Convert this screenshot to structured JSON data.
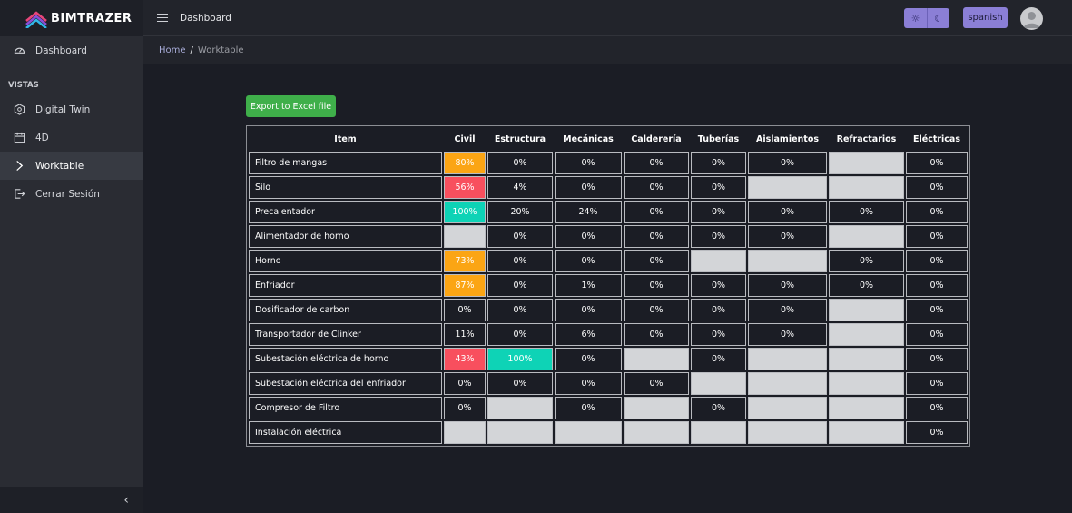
{
  "brand": {
    "name": "BIMTRAZER",
    "logo_icon": "bimtrazer-logo-icon"
  },
  "sidebar": {
    "dashboard": {
      "label": "Dashboard",
      "icon": "gauge-icon"
    },
    "section_title": "VISTAS",
    "items": [
      {
        "label": "Digital Twin",
        "icon": "cube-icon"
      },
      {
        "label": "4D",
        "icon": "calendar-icon"
      },
      {
        "label": "Worktable",
        "icon": "diamond-arrow-icon",
        "active": true
      },
      {
        "label": "Cerrar Sesión",
        "icon": "logout-icon"
      }
    ],
    "collapse_icon": "chevron-left-icon"
  },
  "topbar": {
    "title": "Dashboard",
    "language": "spanish",
    "theme_light_icon": "sun-icon",
    "theme_dark_icon": "moon-icon"
  },
  "breadcrumb": {
    "home": "Home",
    "separator": "/",
    "current": "Worktable"
  },
  "toolbar": {
    "export_label": "Export to Excel file"
  },
  "colors": {
    "orange": "#fba514",
    "red": "#f84f5e",
    "teal": "#0ed3b6",
    "na": "#d3d5d8",
    "accent": "#8b7fd6",
    "export": "#3faf4a"
  },
  "table": {
    "headers": [
      "Item",
      "Civil",
      "Estructura",
      "Mecánicas",
      "Calderería",
      "Tuberías",
      "Aislamientos",
      "Refractarios",
      "Eléctricas"
    ],
    "rows": [
      {
        "item": "Filtro de mangas",
        "cells": [
          "80%",
          "0%",
          "0%",
          "0%",
          "0%",
          "0%",
          null,
          "0%"
        ],
        "status": [
          "orange",
          "",
          "",
          "",
          "",
          "",
          "na",
          ""
        ]
      },
      {
        "item": "Silo",
        "cells": [
          "56%",
          "4%",
          "0%",
          "0%",
          "0%",
          null,
          null,
          "0%"
        ],
        "status": [
          "red",
          "",
          "",
          "",
          "",
          "na",
          "na",
          ""
        ]
      },
      {
        "item": "Precalentador",
        "cells": [
          "100%",
          "20%",
          "24%",
          "0%",
          "0%",
          "0%",
          "0%",
          "0%"
        ],
        "status": [
          "teal",
          "",
          "",
          "",
          "",
          "",
          "",
          ""
        ]
      },
      {
        "item": "Alimentador de horno",
        "cells": [
          null,
          "0%",
          "0%",
          "0%",
          "0%",
          "0%",
          null,
          "0%"
        ],
        "status": [
          "na",
          "",
          "",
          "",
          "",
          "",
          "na",
          ""
        ]
      },
      {
        "item": "Horno",
        "cells": [
          "73%",
          "0%",
          "0%",
          "0%",
          null,
          null,
          "0%",
          "0%"
        ],
        "status": [
          "orange",
          "",
          "",
          "",
          "na",
          "na",
          "",
          ""
        ]
      },
      {
        "item": "Enfriador",
        "cells": [
          "87%",
          "0%",
          "1%",
          "0%",
          "0%",
          "0%",
          "0%",
          "0%"
        ],
        "status": [
          "orange",
          "",
          "",
          "",
          "",
          "",
          "",
          ""
        ]
      },
      {
        "item": "Dosificador de carbon",
        "cells": [
          "0%",
          "0%",
          "0%",
          "0%",
          "0%",
          "0%",
          null,
          "0%"
        ],
        "status": [
          "",
          "",
          "",
          "",
          "",
          "",
          "na",
          ""
        ]
      },
      {
        "item": "Transportador de Clinker",
        "cells": [
          "11%",
          "0%",
          "6%",
          "0%",
          "0%",
          "0%",
          null,
          "0%"
        ],
        "status": [
          "",
          "",
          "",
          "",
          "",
          "",
          "na",
          ""
        ]
      },
      {
        "item": "Subestación eléctrica de horno",
        "cells": [
          "43%",
          "100%",
          "0%",
          null,
          "0%",
          null,
          null,
          "0%"
        ],
        "status": [
          "red",
          "teal",
          "",
          "na",
          "",
          "na",
          "na",
          ""
        ]
      },
      {
        "item": "Subestación eléctrica del enfriador",
        "cells": [
          "0%",
          "0%",
          "0%",
          "0%",
          null,
          null,
          null,
          "0%"
        ],
        "status": [
          "",
          "",
          "",
          "",
          "na",
          "na",
          "na",
          ""
        ]
      },
      {
        "item": "Compresor de Filtro",
        "cells": [
          "0%",
          null,
          "0%",
          null,
          "0%",
          null,
          null,
          "0%"
        ],
        "status": [
          "",
          "na",
          "",
          "na",
          "",
          "na",
          "na",
          ""
        ]
      },
      {
        "item": "Instalación eléctrica",
        "cells": [
          null,
          null,
          null,
          null,
          null,
          null,
          null,
          "0%"
        ],
        "status": [
          "na",
          "na",
          "na",
          "na",
          "na",
          "na",
          "na",
          ""
        ]
      }
    ]
  }
}
